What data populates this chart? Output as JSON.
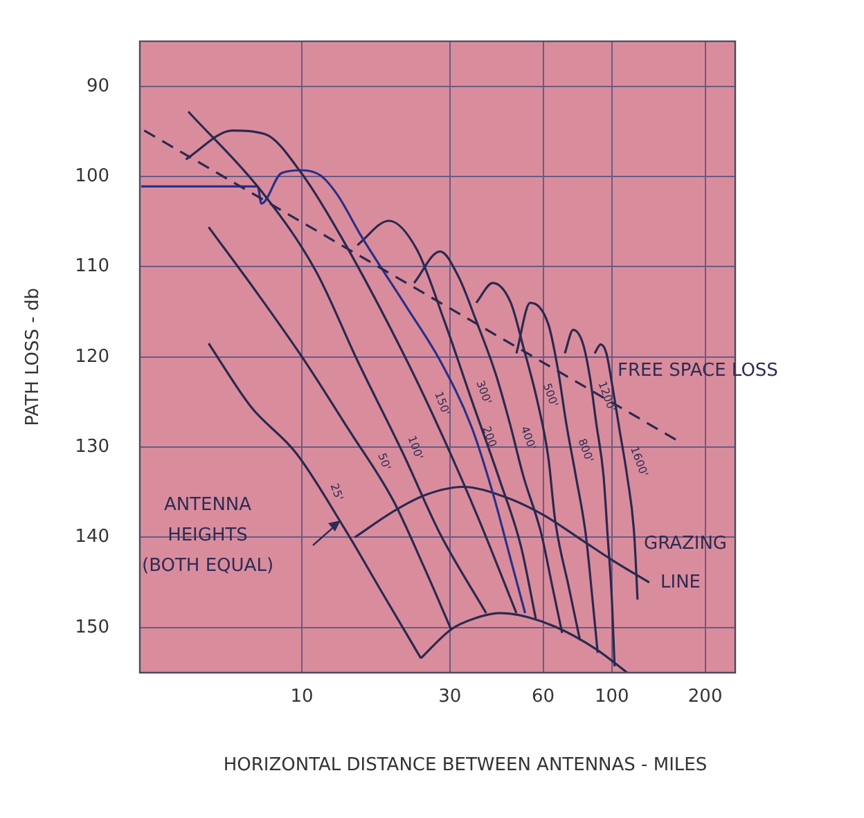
{
  "chart_data": {
    "type": "line",
    "xlabel": "HORIZONTAL DISTANCE BETWEEN ANTENNAS - MILES",
    "ylabel": "PATH LOSS - db",
    "log": "x",
    "xlim": [
      3,
      250
    ],
    "xticks": [
      10,
      30,
      60,
      100,
      200
    ],
    "ylim": [
      155,
      85
    ],
    "yticks": [
      90,
      100,
      110,
      120,
      130,
      140,
      150
    ],
    "grid": true,
    "legend": false,
    "marker": "none",
    "series": [
      {
        "color": "#2b2950",
        "x": [
          3.1,
          169
        ],
        "values": [
          94.9,
          129.6
        ],
        "line_style": "dashed"
      },
      {
        "name": "25'",
        "color": "#2b2950",
        "x": [
          5.0,
          6.84,
          9.6,
          13.6,
          18.2,
          24.2
        ],
        "values": [
          118.5,
          125.5,
          130.7,
          138.8,
          146.2,
          153.4
        ]
      },
      {
        "name": "50'",
        "color": "#2b2950",
        "x": [
          5.0,
          7.2,
          10.1,
          14.0,
          19.7,
          24.7,
          30.3
        ],
        "values": [
          105.6,
          113.0,
          120.2,
          127.8,
          135.9,
          143.2,
          150.2
        ]
      },
      {
        "name": "100'",
        "color": "#2b2950",
        "x": [
          4.3,
          7.43,
          11.1,
          15.1,
          21.2,
          27.9,
          39.3
        ],
        "values": [
          92.8,
          101.7,
          110.5,
          120.4,
          130.7,
          139.6,
          148.4
        ]
      },
      {
        "name": "150'",
        "color": "#2b2950",
        "x": [
          4.22,
          5.98,
          7.6,
          10,
          13.6,
          21.8,
          28.8,
          37.3,
          49.2
        ],
        "values": [
          98.1,
          94.9,
          95.3,
          99.7,
          107.1,
          120.4,
          129.2,
          138.1,
          148.4
        ]
      },
      {
        "name": "200",
        "color": "#2c2f8a",
        "x": [
          3.03,
          7.2,
          7.4,
          8.6,
          10,
          11.5,
          13.0,
          15.6,
          21.8,
          27.9,
          35.3,
          41.3,
          47.2,
          52.5
        ],
        "values": [
          101.1,
          101.1,
          103.0,
          99.6,
          99.3,
          99.9,
          102.0,
          106.7,
          114.5,
          120.4,
          127.8,
          135.1,
          142.5,
          148.4
        ]
      },
      {
        "name": "300'",
        "color": "#2b2950",
        "x": [
          15.1,
          19.1,
          23.5,
          28.8,
          35.3,
          43.5,
          50.9,
          56.8
        ],
        "values": [
          107.6,
          104.9,
          108.1,
          116.0,
          124.8,
          133.7,
          141.0,
          149.0
        ]
      },
      {
        "name": "400'",
        "color": "#2b2950",
        "x": [
          23.0,
          27.9,
          32,
          36.5,
          42.2,
          46.8,
          51.8,
          59.2,
          64.3,
          69.1
        ],
        "values": [
          111.8,
          108.3,
          111.1,
          116.0,
          121.9,
          127.3,
          133.2,
          139.6,
          145.5,
          150.6
        ]
      },
      {
        "name": "500'",
        "color": "#2b2950",
        "x": [
          36.5,
          41.3,
          47.2,
          51.8,
          57.4,
          62.4,
          65.6,
          72.6,
          78.9
        ],
        "values": [
          114.0,
          111.8,
          114.0,
          118.9,
          124.8,
          131.2,
          138.1,
          145.5,
          151.4
        ]
      },
      {
        "name": "800'",
        "color": "#2b2950",
        "x": [
          49.2,
          54.5,
          62.4,
          67.0,
          71.2,
          76.5,
          82.3,
          86.6,
          90
        ],
        "values": [
          119.6,
          114.0,
          116.4,
          121.4,
          127.3,
          133.2,
          139.6,
          146.9,
          152.8
        ]
      },
      {
        "name": "1200'",
        "color": "#2b2950",
        "x": [
          70.5,
          75,
          80.6,
          85,
          89,
          94,
          96.8,
          100,
          102
        ],
        "values": [
          119.6,
          117.0,
          118.5,
          122.3,
          127.3,
          133.2,
          139.6,
          146.9,
          154.3
        ]
      },
      {
        "name": "1600'",
        "color": "#2b2950",
        "x": [
          88,
          92,
          96,
          101,
          106,
          112,
          118,
          121
        ],
        "values": [
          119.6,
          118.6,
          119.6,
          123.8,
          128.2,
          133.2,
          139.6,
          146.9
        ]
      },
      {
        "color": "#2b2950",
        "x": [
          14.8,
          20,
          25,
          33,
          45,
          60,
          80,
          100,
          132
        ],
        "values": [
          140.0,
          137.0,
          135.3,
          134.4,
          135.5,
          137.5,
          140.3,
          142.5,
          145.0
        ]
      },
      {
        "color": "#2b2950",
        "x": [
          24.2,
          30.3,
          36,
          43.5,
          50,
          65.6,
          89,
          112
        ],
        "values": [
          153.4,
          150.2,
          149.0,
          148.4,
          148.6,
          149.9,
          152.4,
          155.0
        ]
      }
    ],
    "annotations": [
      "FREE SPACE LOSS",
      "GRAZING\nLINE",
      "ANTENNA\nHEIGHTS\n(BOTH EQUAL)"
    ]
  }
}
